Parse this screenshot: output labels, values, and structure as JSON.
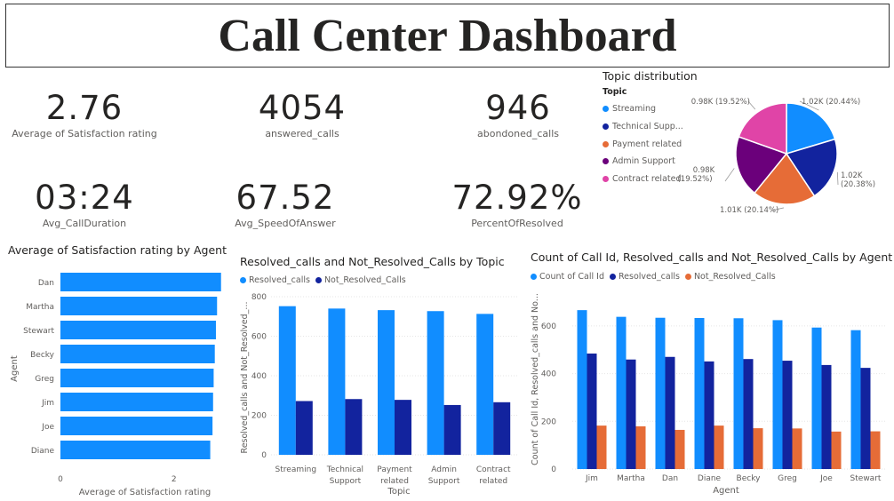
{
  "title": "Call Center Dashboard",
  "kpis": [
    {
      "value": "2.76",
      "label": "Average of Satisfaction rating"
    },
    {
      "value": "4054",
      "label": "answered_calls"
    },
    {
      "value": "946",
      "label": "abondoned_calls"
    },
    {
      "value": "03:24",
      "label": "Avg_CallDuration"
    },
    {
      "value": "67.52",
      "label": "Avg_SpeedOfAnswer"
    },
    {
      "value": "72.92%",
      "label": "PercentOfResolved"
    }
  ],
  "colors": {
    "blue": "#118DFF",
    "navy": "#12239E",
    "orange": "#E66C37",
    "purple": "#6B007B",
    "pink": "#E044A7"
  },
  "chart_data": [
    {
      "type": "pie",
      "title": "Topic distribution",
      "legend_title": "Topic",
      "legend_items": [
        "Streaming",
        "Technical Supp...",
        "Payment related",
        "Admin Support",
        "Contract related"
      ],
      "categories": [
        "Streaming",
        "Technical Support",
        "Payment related",
        "Admin Support",
        "Contract related"
      ],
      "values": [
        1020,
        1020,
        1010,
        980,
        980
      ],
      "data_labels": [
        "1.02K (20.44%)",
        "1.02K (20.38%)",
        "1.01K (20.14%)",
        "0.98K (19.52%)",
        "0.98K (19.52%)"
      ],
      "colors": [
        "#118DFF",
        "#12239E",
        "#E66C37",
        "#6B007B",
        "#E044A7"
      ]
    },
    {
      "type": "bar",
      "orientation": "horizontal",
      "title": "Average of Satisfaction rating by Agent",
      "categories": [
        "Dan",
        "Martha",
        "Stewart",
        "Becky",
        "Greg",
        "Jim",
        "Joe",
        "Diane"
      ],
      "values": [
        2.83,
        2.76,
        2.74,
        2.72,
        2.7,
        2.69,
        2.68,
        2.64
      ],
      "xlabel": "Average of Satisfaction rating",
      "ylabel": "Agent",
      "xlim": [
        0,
        2.85
      ],
      "xticks": [
        "0",
        "2"
      ]
    },
    {
      "type": "bar",
      "title": "Resolved_calls and Not_Resolved_Calls by Topic",
      "categories": [
        "Streaming",
        "Technical Support",
        "Payment related",
        "Admin Support",
        "Contract related"
      ],
      "series": [
        {
          "name": "Resolved_calls",
          "values": [
            752,
            740,
            732,
            727,
            713
          ]
        },
        {
          "name": "Not_Resolved_Calls",
          "values": [
            272,
            282,
            278,
            252,
            266
          ]
        }
      ],
      "xlabel": "Topic",
      "ylabel": "Resolved_calls and Not_Resolved_...",
      "ylim": [
        0,
        800
      ],
      "yticks": [
        "0",
        "200",
        "400",
        "600",
        "800"
      ]
    },
    {
      "type": "bar",
      "title": "Count of Call Id, Resolved_calls and Not_Resolved_Calls by Agent",
      "categories": [
        "Jim",
        "Martha",
        "Dan",
        "Diane",
        "Becky",
        "Greg",
        "Joe",
        "Stewart"
      ],
      "series": [
        {
          "name": "Count of Call Id",
          "values": [
            666,
            638,
            634,
            633,
            632,
            624,
            593,
            582
          ]
        },
        {
          "name": "Resolved_calls",
          "values": [
            484,
            459,
            470,
            451,
            461,
            454,
            436,
            424
          ]
        },
        {
          "name": "Not_Resolved_Calls",
          "values": [
            182,
            179,
            164,
            182,
            171,
            170,
            157,
            158
          ]
        }
      ],
      "xlabel": "Agent",
      "ylabel": "Count of Call Id, Resolved_calls and No...",
      "ylim": [
        0,
        700
      ],
      "yticks": [
        "0",
        "200",
        "400",
        "600"
      ]
    }
  ]
}
